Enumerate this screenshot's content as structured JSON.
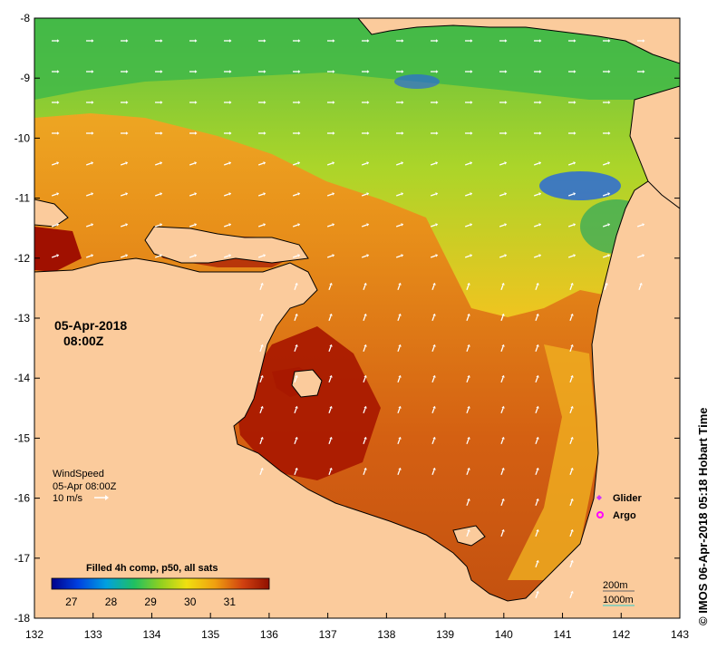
{
  "map": {
    "date": "05-Apr-2018",
    "time": "08:00Z",
    "x_ticks": [
      "132",
      "133",
      "134",
      "135",
      "136",
      "137",
      "138",
      "139",
      "140",
      "141",
      "142",
      "143"
    ],
    "y_ticks": [
      "-8",
      "-9",
      "-10",
      "-11",
      "-12",
      "-13",
      "-14",
      "-15",
      "-16",
      "-17",
      "-18"
    ],
    "lon_range": [
      132,
      143
    ],
    "lat_range": [
      -18,
      -8
    ]
  },
  "wind": {
    "title": "WindSpeed",
    "time": "05-Apr 08:00Z",
    "scale": "10 m/s"
  },
  "legend": {
    "glider": "Glider",
    "argo": "Argo",
    "glider_color": "#cc33ff",
    "argo_color": "#ff00ff"
  },
  "colorbar": {
    "title": "Filled 4h comp, p50, all sats",
    "ticks": [
      "27",
      "28",
      "29",
      "30",
      "31"
    ],
    "range": [
      26.5,
      32
    ]
  },
  "contours": {
    "c200": "200m",
    "c1000": "1000m"
  },
  "credit": "©  IMOS 06-Apr-2018 05:18 Hobart Time",
  "colors": {
    "land": "#fbcb9c",
    "hot": "#a01000",
    "warm": "#e07a10",
    "mid": "#f3c21a",
    "cool": "#3fbf4a",
    "cold": "#1a5ad0"
  }
}
